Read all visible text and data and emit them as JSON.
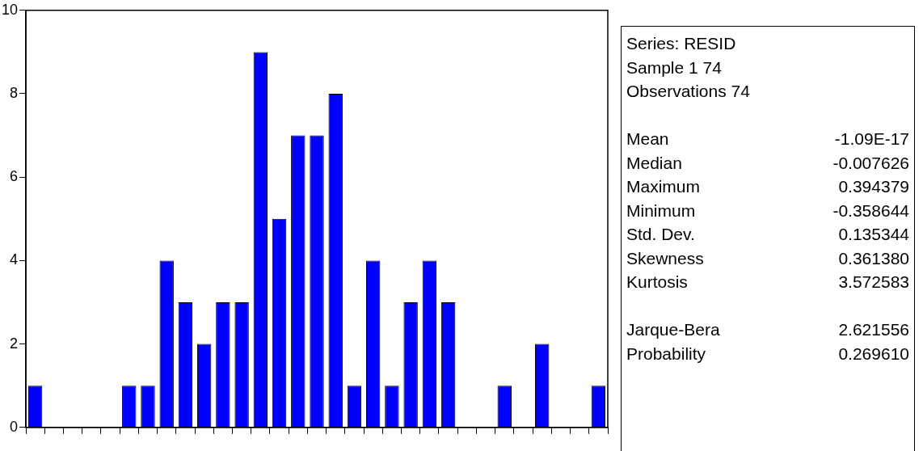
{
  "chart_data": {
    "type": "bar",
    "categories": [
      null,
      null,
      null,
      null,
      null,
      null,
      null,
      null,
      null,
      null,
      null,
      null,
      null,
      null,
      null,
      null,
      null,
      null,
      null,
      null,
      null,
      null,
      null,
      null,
      null,
      null,
      null,
      null,
      null,
      null,
      null
    ],
    "values": [
      1,
      0,
      0,
      0,
      0,
      1,
      1,
      4,
      3,
      2,
      3,
      3,
      9,
      5,
      7,
      7,
      8,
      1,
      4,
      1,
      3,
      4,
      3,
      0,
      0,
      1,
      0,
      2,
      0,
      0,
      1
    ],
    "color": "#0000ff",
    "ylim": [
      0,
      10
    ],
    "yticks": [
      0,
      2,
      4,
      6,
      8,
      10
    ],
    "grid": false,
    "legend": false,
    "annotations": [
      "Series: RESID",
      "Sample 1 74",
      "Observations 74",
      "Mean",
      "-1.09E-17",
      "Median",
      "-0.007626",
      "Maximum",
      "0.394379",
      "Minimum",
      "-0.358644",
      "Std. Dev.",
      "0.135344",
      "Skewness",
      "0.361380",
      "Kurtosis",
      "3.572583",
      "Jarque-Bera",
      "2.621556",
      "Probability",
      "0.269610"
    ]
  }
}
